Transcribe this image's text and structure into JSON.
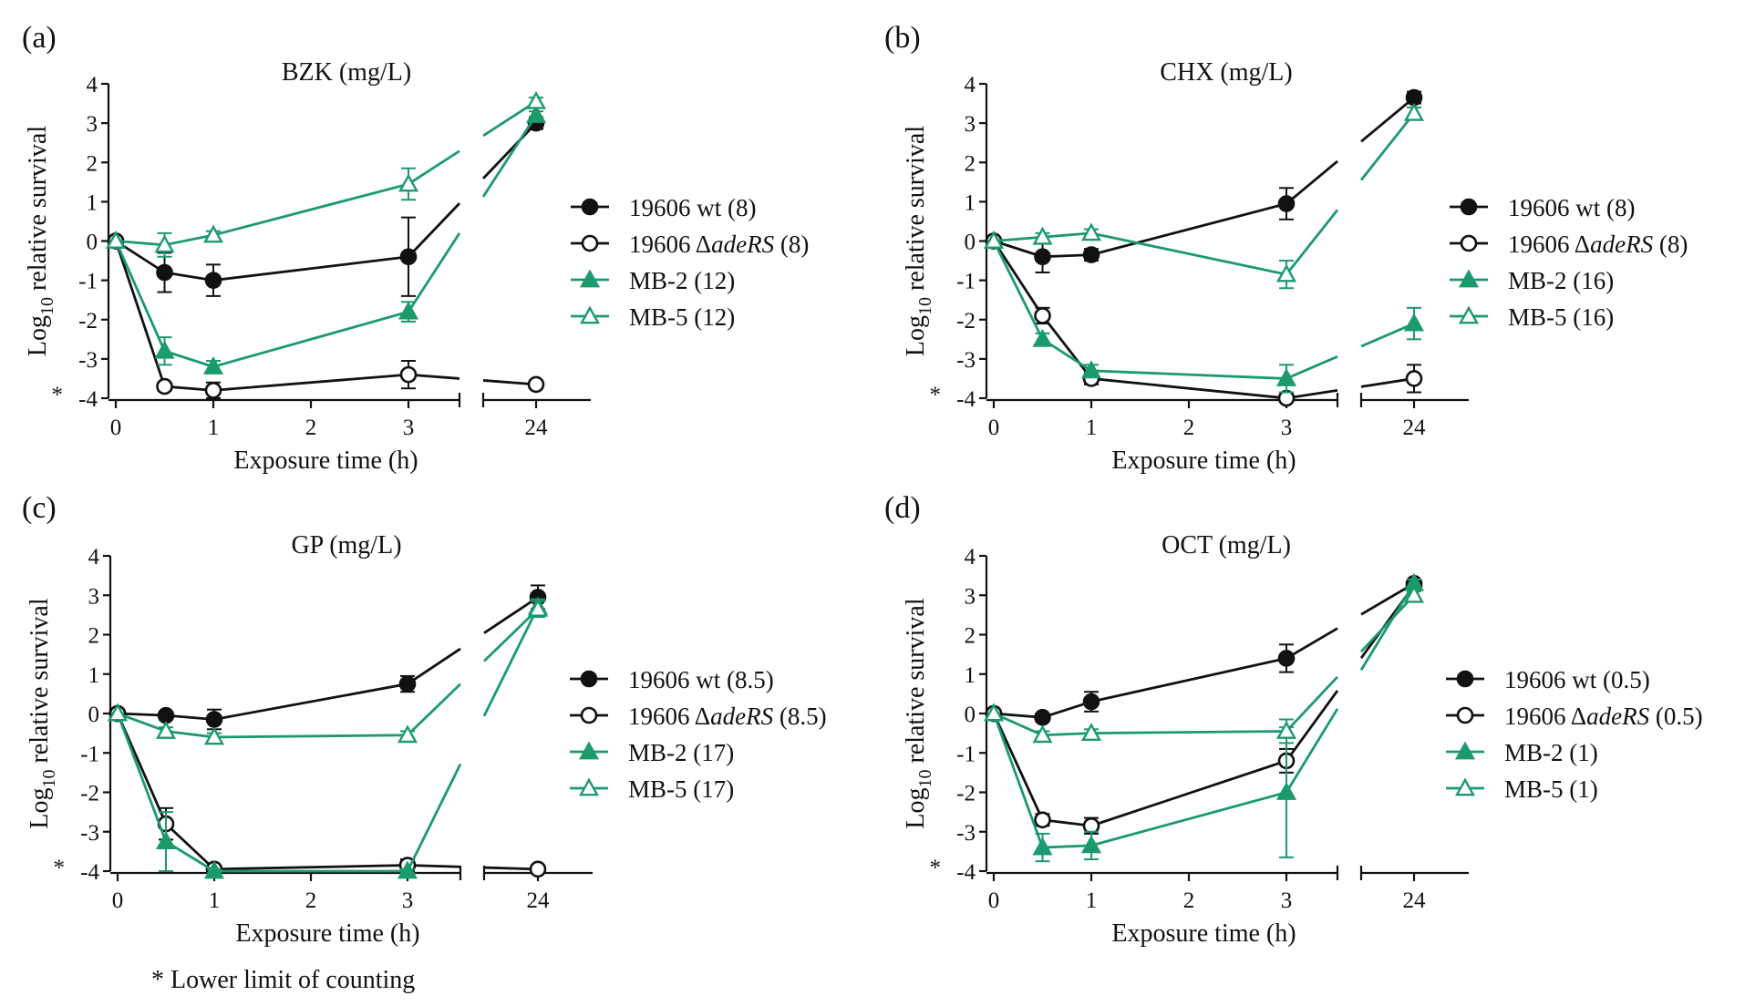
{
  "figure": {
    "footnote": "* Lower limit of counting"
  },
  "colors": {
    "black": "#111111",
    "green": "#1b9a6c"
  },
  "chart_data": [
    {
      "type": "line",
      "panel_label": "(a)",
      "title": "BZK (mg/L)",
      "xlabel": "Exposure time (h)",
      "ylabel_prefix": "Log",
      "ylabel_sub": "10",
      "ylabel_suffix": " relative survival",
      "x_ticks": [
        "0",
        "1",
        "2",
        "3",
        "24"
      ],
      "y_ticks": [
        "-4",
        "-3",
        "-2",
        "-1",
        "0",
        "1",
        "2",
        "3",
        "4"
      ],
      "lower_limit_marker": "*",
      "x": [
        0,
        0.5,
        1,
        3,
        24
      ],
      "ylim": [
        -4,
        4
      ],
      "series": [
        {
          "name": "19606 wt",
          "conc": "(8)",
          "color": "black",
          "marker": "circle",
          "filled": true,
          "values": [
            0,
            -0.8,
            -1.0,
            -0.4,
            3.0
          ],
          "errors": [
            0,
            0.5,
            0.4,
            1.0,
            0.15
          ]
        },
        {
          "name": "19606 ",
          "name_italic": "adeRS",
          "conc": " (8)",
          "delta": true,
          "color": "black",
          "marker": "circle",
          "filled": false,
          "values": [
            0,
            -3.7,
            -3.8,
            -3.4,
            -3.65
          ],
          "errors": [
            0,
            0.1,
            0.2,
            0.35,
            0.1
          ]
        },
        {
          "name": "MB-2",
          "conc": " (12)",
          "color": "green",
          "marker": "triangle",
          "filled": true,
          "values": [
            0,
            -2.8,
            -3.2,
            -1.8,
            3.2
          ],
          "errors": [
            0,
            0.35,
            0.15,
            0.25,
            0.1
          ]
        },
        {
          "name": "MB-5",
          "conc": " (12)",
          "color": "green",
          "marker": "triangle",
          "filled": false,
          "values": [
            0,
            -0.1,
            0.15,
            1.45,
            3.55
          ],
          "errors": [
            0,
            0.3,
            0.1,
            0.4,
            0.1
          ]
        }
      ]
    },
    {
      "type": "line",
      "panel_label": "(b)",
      "title": "CHX (mg/L)",
      "xlabel": "Exposure time (h)",
      "ylabel_prefix": "Log",
      "ylabel_sub": "10",
      "ylabel_suffix": " relative survival",
      "x_ticks": [
        "0",
        "1",
        "2",
        "3",
        "24"
      ],
      "y_ticks": [
        "-4",
        "-3",
        "-2",
        "-1",
        "0",
        "1",
        "2",
        "3",
        "4"
      ],
      "lower_limit_marker": "*",
      "x": [
        0,
        0.5,
        1,
        3,
        24
      ],
      "ylim": [
        -4,
        4
      ],
      "series": [
        {
          "name": "19606 wt",
          "conc": "(8)",
          "color": "black",
          "marker": "circle",
          "filled": true,
          "values": [
            0,
            -0.4,
            -0.35,
            0.95,
            3.65
          ],
          "errors": [
            0,
            0.4,
            0.15,
            0.4,
            0.15
          ]
        },
        {
          "name": "19606 ",
          "name_italic": "adeRS",
          "conc": " (8)",
          "delta": true,
          "color": "black",
          "marker": "circle",
          "filled": false,
          "values": [
            0,
            -1.9,
            -3.5,
            -4.0,
            -3.5
          ],
          "errors": [
            0,
            0.2,
            0.15,
            0.05,
            0.35
          ]
        },
        {
          "name": "MB-2",
          "conc": " (16)",
          "color": "green",
          "marker": "triangle",
          "filled": true,
          "values": [
            0,
            -2.5,
            -3.3,
            -3.5,
            -2.1
          ],
          "errors": [
            0,
            0.15,
            0.15,
            0.35,
            0.4
          ]
        },
        {
          "name": "MB-5",
          "conc": " (16)",
          "color": "green",
          "marker": "triangle",
          "filled": false,
          "values": [
            0,
            0.1,
            0.2,
            -0.85,
            3.25
          ],
          "errors": [
            0,
            0.1,
            0.1,
            0.35,
            0.15
          ]
        }
      ]
    },
    {
      "type": "line",
      "panel_label": "(c)",
      "title": "GP (mg/L)",
      "xlabel": "Exposure time (h)",
      "ylabel_prefix": "Log",
      "ylabel_sub": "10",
      "ylabel_suffix": " relative survival",
      "x_ticks": [
        "0",
        "1",
        "2",
        "3",
        "24"
      ],
      "y_ticks": [
        "-4",
        "-3",
        "-2",
        "-1",
        "0",
        "1",
        "2",
        "3",
        "4"
      ],
      "lower_limit_marker": "*",
      "x": [
        0,
        0.5,
        1,
        3,
        24
      ],
      "ylim": [
        -4,
        4
      ],
      "series": [
        {
          "name": "19606 wt",
          "conc": "(8.5)",
          "color": "black",
          "marker": "circle",
          "filled": true,
          "values": [
            0,
            -0.05,
            -0.15,
            0.75,
            2.95
          ],
          "errors": [
            0,
            0.1,
            0.25,
            0.2,
            0.3
          ]
        },
        {
          "name": "19606 ",
          "name_italic": "adeRS",
          "conc": " (8.5)",
          "delta": true,
          "color": "black",
          "marker": "circle",
          "filled": false,
          "values": [
            0,
            -2.8,
            -3.95,
            -3.85,
            -3.95
          ],
          "errors": [
            0,
            0.4,
            0.05,
            0.15,
            0.05
          ]
        },
        {
          "name": "MB-2",
          "conc": " (17)",
          "color": "green",
          "marker": "triangle",
          "filled": true,
          "values": [
            0,
            -3.25,
            -4.0,
            -4.0,
            2.7
          ],
          "errors": [
            0,
            0.75,
            0.05,
            0.05,
            0.2
          ]
        },
        {
          "name": "MB-5",
          "conc": " (17)",
          "color": "green",
          "marker": "triangle",
          "filled": false,
          "values": [
            0,
            -0.45,
            -0.6,
            -0.55,
            2.65
          ],
          "errors": [
            0,
            0.1,
            0.1,
            0.1,
            0.2
          ]
        }
      ]
    },
    {
      "type": "line",
      "panel_label": "(d)",
      "title": "OCT (mg/L)",
      "xlabel": "Exposure time (h)",
      "ylabel_prefix": "Log",
      "ylabel_sub": "10",
      "ylabel_suffix": " relative survival",
      "x_ticks": [
        "0",
        "1",
        "2",
        "3",
        "24"
      ],
      "y_ticks": [
        "-4",
        "-3",
        "-2",
        "-1",
        "0",
        "1",
        "2",
        "3",
        "4"
      ],
      "lower_limit_marker": "*",
      "x": [
        0,
        0.5,
        1,
        3,
        24
      ],
      "ylim": [
        -4,
        4
      ],
      "series": [
        {
          "name": "19606 wt",
          "conc": "(0.5)",
          "color": "black",
          "marker": "circle",
          "filled": true,
          "values": [
            0,
            -0.1,
            0.3,
            1.4,
            3.3
          ],
          "errors": [
            0,
            0.1,
            0.25,
            0.35,
            0.1
          ]
        },
        {
          "name": "19606 ",
          "name_italic": "adeRS",
          "conc": " (0.5)",
          "delta": true,
          "color": "black",
          "marker": "circle",
          "filled": false,
          "values": [
            0,
            -2.7,
            -2.85,
            -1.2,
            3.25
          ],
          "errors": [
            0,
            0.15,
            0.2,
            0.3,
            0.1
          ]
        },
        {
          "name": "MB-2",
          "conc": " (1)",
          "color": "green",
          "marker": "triangle",
          "filled": true,
          "values": [
            0,
            -3.4,
            -3.35,
            -2.0,
            3.3
          ],
          "errors": [
            0,
            0.35,
            0.35,
            1.65,
            0.1
          ]
        },
        {
          "name": "MB-5",
          "conc": " (1)",
          "color": "green",
          "marker": "triangle",
          "filled": false,
          "values": [
            0,
            -0.55,
            -0.5,
            -0.45,
            3.0
          ],
          "errors": [
            0,
            0.1,
            0.1,
            0.3,
            0.1
          ]
        }
      ]
    }
  ]
}
